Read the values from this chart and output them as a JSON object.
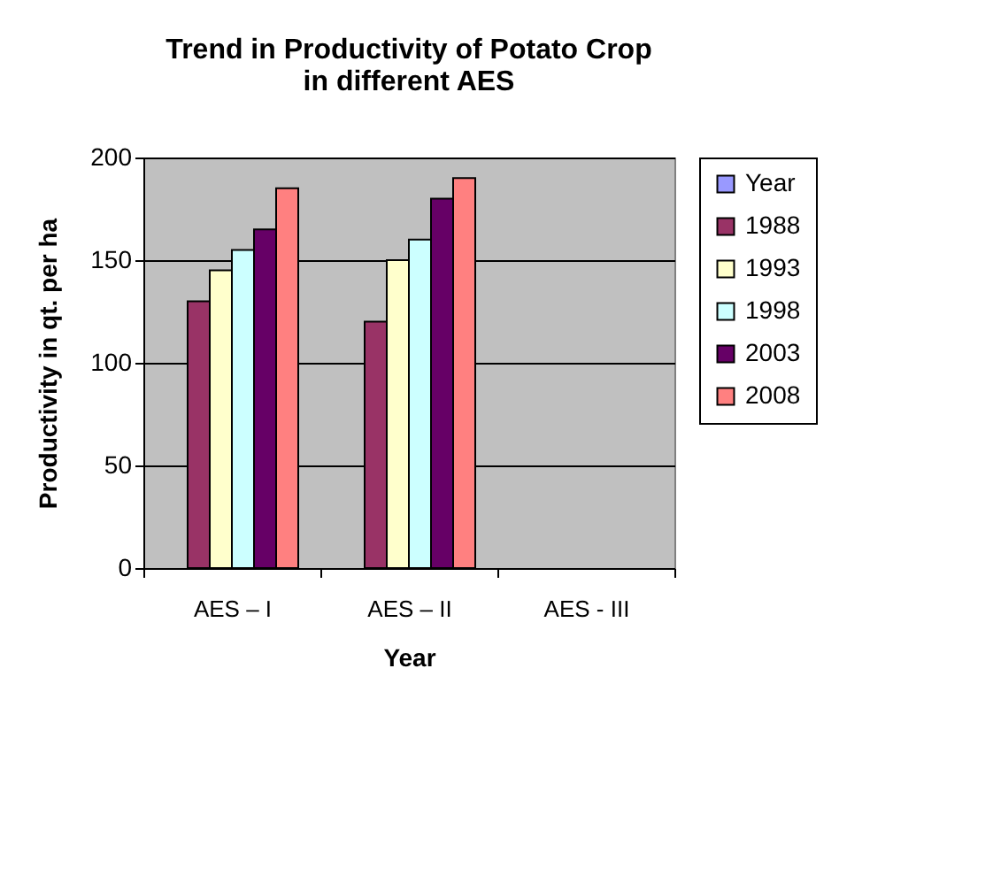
{
  "chart_data": {
    "type": "bar",
    "title": "Trend in Productivity of Potato Crop in different AES",
    "xlabel": "Year",
    "ylabel": "Productivity in qt. per ha",
    "categories": [
      "AES – I",
      "AES – II",
      "AES - III"
    ],
    "series": [
      {
        "name": "Year",
        "color": "#9999ff",
        "values": [
          null,
          null,
          null
        ]
      },
      {
        "name": "1988",
        "color": "#993366",
        "values": [
          130,
          120,
          null
        ]
      },
      {
        "name": "1993",
        "color": "#ffffcc",
        "values": [
          145,
          150,
          null
        ]
      },
      {
        "name": "1998",
        "color": "#ccffff",
        "values": [
          155,
          160,
          null
        ]
      },
      {
        "name": "2003",
        "color": "#660066",
        "values": [
          165,
          180,
          null
        ]
      },
      {
        "name": "2008",
        "color": "#ff8080",
        "values": [
          185,
          190,
          null
        ]
      }
    ],
    "ylim": [
      0,
      200
    ],
    "yticks": [
      0,
      50,
      100,
      150,
      200
    ],
    "grid": "y",
    "legend": "right"
  }
}
